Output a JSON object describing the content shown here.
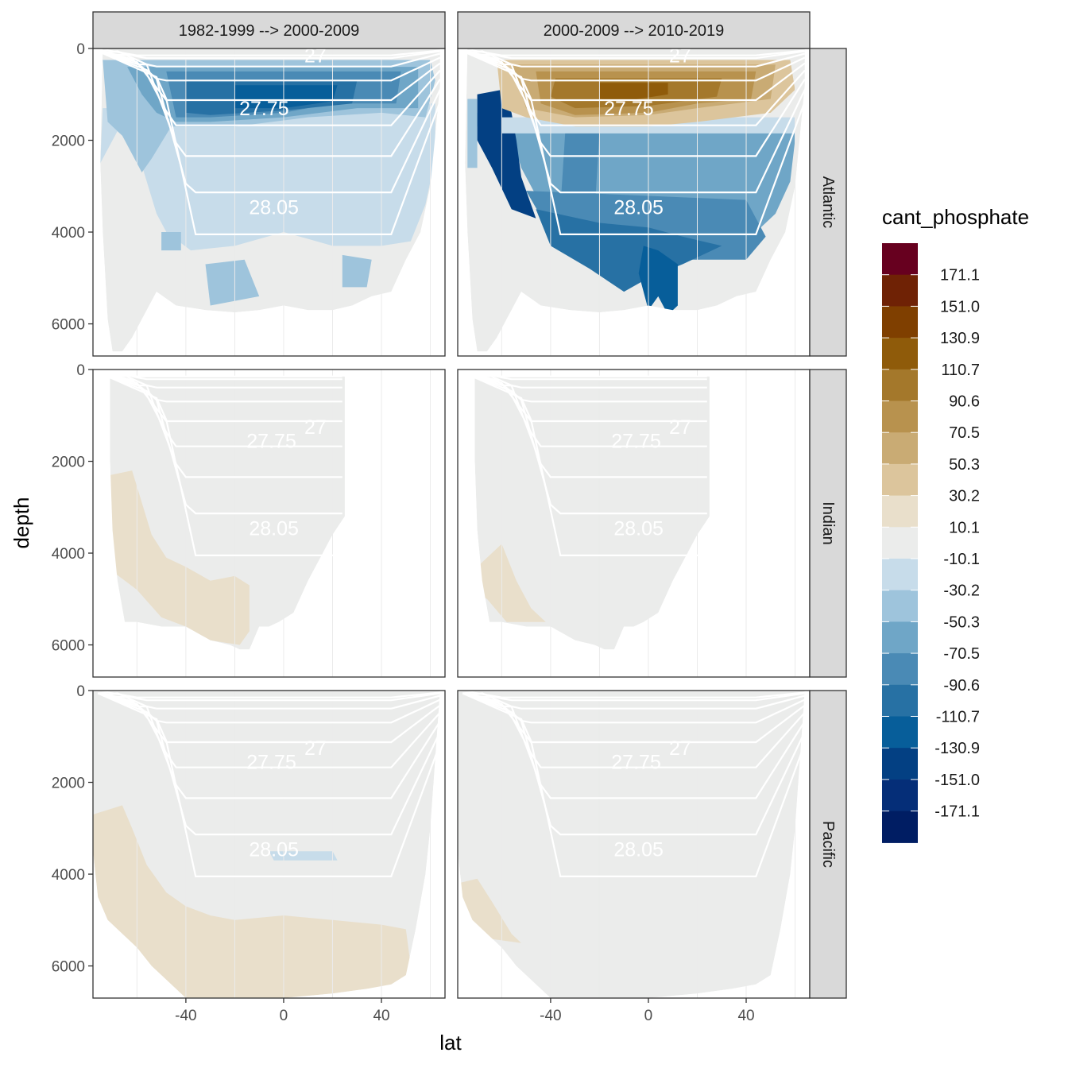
{
  "chart_data": {
    "type": "heatmap",
    "title": "",
    "xlabel": "lat",
    "ylabel": "depth",
    "x_ticks": [
      "-40",
      "0",
      "40"
    ],
    "x_tick_values": [
      -40,
      0,
      40
    ],
    "y_ticks": [
      "0",
      "2000",
      "4000",
      "6000"
    ],
    "y_tick_values": [
      0,
      2000,
      4000,
      6000
    ],
    "xlim": [
      -78,
      66
    ],
    "ylim": [
      6700,
      0
    ],
    "column_facets": [
      "1982-1999 --> 2000-2009",
      "2000-2009 --> 2010-2019"
    ],
    "row_facets": [
      "Atlantic",
      "Indian",
      "Pacific"
    ],
    "legend": {
      "title": "cant_phosphate",
      "labels": [
        "171.1",
        "151.0",
        "130.9",
        "110.7",
        "90.6",
        "70.5",
        "50.3",
        "30.2",
        "10.1",
        "-10.1",
        "-30.2",
        "-50.3",
        "-70.5",
        "-90.6",
        "-110.7",
        "-130.9",
        "-151.0",
        "-171.1"
      ],
      "colors": [
        "#67001f",
        "#6f2205",
        "#7f3f00",
        "#8f5b0a",
        "#a4782b",
        "#b8924e",
        "#c9ab74",
        "#dcc59c",
        "#e9dfcb",
        "#ebeceb",
        "#c7dcea",
        "#9ec4dc",
        "#6fa6c7",
        "#4a8ab5",
        "#2771a4",
        "#075e9a",
        "#034083",
        "#052e78",
        "#001d63"
      ],
      "placement": "right"
    },
    "isopycnal_labels": [
      "27",
      "27.75",
      "28.05"
    ],
    "panels": [
      {
        "row": "Atlantic",
        "col": "1982-1999 --> 2000-2009",
        "dominant_range": "-110.7 to -50.3",
        "feature": "strong negative band 800-1500 m"
      },
      {
        "row": "Atlantic",
        "col": "2000-2009 --> 2010-2019",
        "dominant_range": "90.6 to -130.9",
        "feature": "positive band upper 1500 m, negative deep water"
      },
      {
        "row": "Indian",
        "col": "1982-1999 --> 2000-2009",
        "dominant_range": "-10.1 to 30.2",
        "feature": "weak positive in deep south"
      },
      {
        "row": "Indian",
        "col": "2000-2009 --> 2010-2019",
        "dominant_range": "-10.1 to 30.2",
        "feature": "weak positive in deep south"
      },
      {
        "row": "Pacific",
        "col": "1982-1999 --> 2000-2009",
        "dominant_range": "-10.1 to 30.2",
        "feature": "weak positive in abyss"
      },
      {
        "row": "Pacific",
        "col": "2000-2009 --> 2010-2019",
        "dominant_range": "-10.1 to 30.2",
        "feature": "weak positive in deep south"
      }
    ]
  }
}
